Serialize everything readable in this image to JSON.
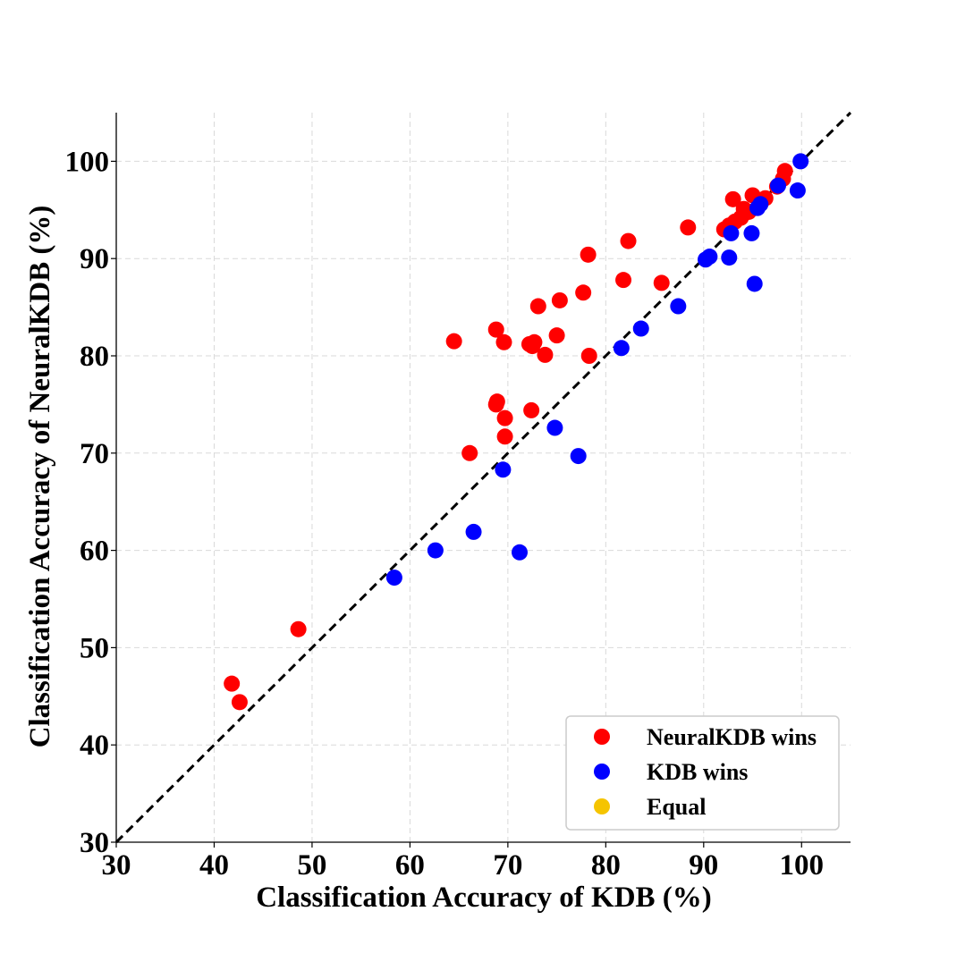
{
  "chart_data": {
    "type": "scatter",
    "xlabel": "Classification Accuracy of KDB (%)",
    "ylabel": "Classification Accuracy of NeuralKDB (%)",
    "xlim": [
      30,
      105
    ],
    "ylim": [
      30,
      105
    ],
    "x_ticks": [
      30,
      40,
      50,
      60,
      70,
      80,
      90,
      100
    ],
    "y_ticks": [
      30,
      40,
      50,
      60,
      70,
      80,
      90,
      100
    ],
    "grid": true,
    "reference_line": {
      "from": [
        30,
        30
      ],
      "to": [
        105,
        105
      ],
      "style": "dashed"
    },
    "legend": {
      "placement": "bottom-right",
      "entries": [
        {
          "label": "NeuralKDB wins",
          "color": "#ff0000"
        },
        {
          "label": "KDB wins",
          "color": "#0000ff"
        },
        {
          "label": "Equal",
          "color": "#f5c400"
        }
      ]
    },
    "series": [
      {
        "name": "NeuralKDB wins",
        "color": "#ff0000",
        "points": [
          [
            41.8,
            46.3
          ],
          [
            42.6,
            44.4
          ],
          [
            48.6,
            51.9
          ],
          [
            64.5,
            81.5
          ],
          [
            66.1,
            70.0
          ],
          [
            68.8,
            82.7
          ],
          [
            68.9,
            75.3
          ],
          [
            68.8,
            75.0
          ],
          [
            69.6,
            81.4
          ],
          [
            69.7,
            73.6
          ],
          [
            69.7,
            71.7
          ],
          [
            72.2,
            81.2
          ],
          [
            72.5,
            81.0
          ],
          [
            72.7,
            81.4
          ],
          [
            72.4,
            74.4
          ],
          [
            73.1,
            85.1
          ],
          [
            73.8,
            80.1
          ],
          [
            75.0,
            82.1
          ],
          [
            75.3,
            85.7
          ],
          [
            77.7,
            86.5
          ],
          [
            78.2,
            90.4
          ],
          [
            78.3,
            80.0
          ],
          [
            81.8,
            87.8
          ],
          [
            82.3,
            91.8
          ],
          [
            85.7,
            87.5
          ],
          [
            88.4,
            93.2
          ],
          [
            92.1,
            93.0
          ],
          [
            92.6,
            93.4
          ],
          [
            93.2,
            93.8
          ],
          [
            93.0,
            96.1
          ],
          [
            93.8,
            94.2
          ],
          [
            94.1,
            95.1
          ],
          [
            94.6,
            94.8
          ],
          [
            95.0,
            96.5
          ],
          [
            95.8,
            95.8
          ],
          [
            96.3,
            96.2
          ],
          [
            97.5,
            97.4
          ],
          [
            98.1,
            98.2
          ],
          [
            98.3,
            99.0
          ]
        ]
      },
      {
        "name": "KDB wins",
        "color": "#0000ff",
        "points": [
          [
            58.4,
            57.2
          ],
          [
            62.6,
            60.0
          ],
          [
            66.5,
            61.9
          ],
          [
            69.5,
            68.3
          ],
          [
            71.2,
            59.8
          ],
          [
            74.8,
            72.6
          ],
          [
            77.2,
            69.7
          ],
          [
            81.6,
            80.8
          ],
          [
            83.6,
            82.8
          ],
          [
            87.4,
            85.1
          ],
          [
            90.2,
            89.9
          ],
          [
            90.6,
            90.2
          ],
          [
            92.6,
            90.1
          ],
          [
            92.8,
            92.6
          ],
          [
            94.9,
            92.6
          ],
          [
            95.2,
            87.4
          ],
          [
            95.5,
            95.2
          ],
          [
            95.8,
            95.6
          ],
          [
            97.6,
            97.5
          ],
          [
            99.6,
            97.0
          ],
          [
            99.9,
            100.0
          ]
        ]
      },
      {
        "name": "Equal",
        "color": "#f5c400",
        "points": []
      }
    ]
  }
}
